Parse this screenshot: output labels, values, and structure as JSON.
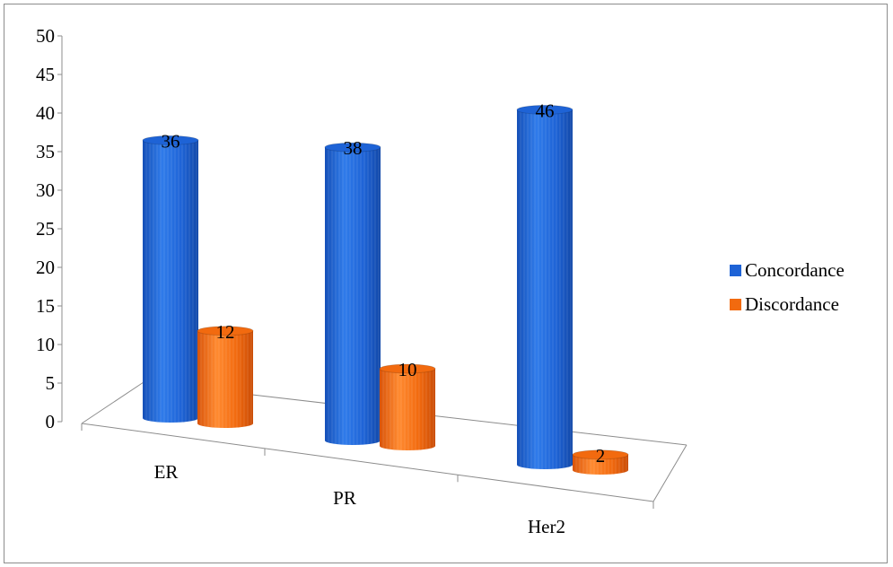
{
  "chart_data": {
    "type": "bar",
    "categories": [
      "ER",
      "PR",
      "Her2"
    ],
    "series": [
      {
        "name": "Concordance",
        "values": [
          36,
          38,
          46
        ],
        "color": "#1E63D6"
      },
      {
        "name": "Discordance",
        "values": [
          12,
          10,
          2
        ],
        "color": "#F26A0F"
      }
    ],
    "ylim": [
      0,
      50
    ],
    "yticks": [
      "0",
      "5",
      "10",
      "15",
      "20",
      "25",
      "30",
      "35",
      "40",
      "45",
      "50"
    ],
    "legend_position": "right",
    "grid": false,
    "shape": "cylinder-3d"
  }
}
